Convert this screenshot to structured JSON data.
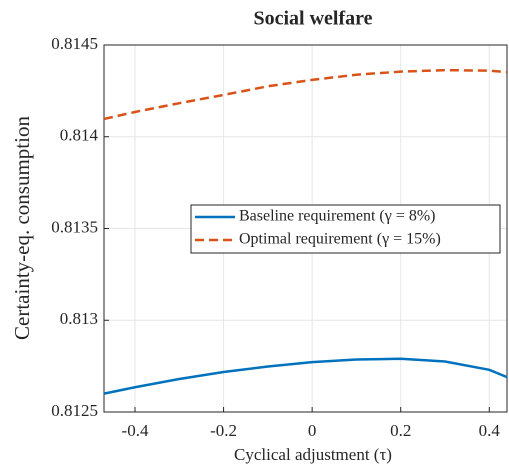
{
  "chart_data": {
    "type": "line",
    "title": "Social welfare",
    "x_label": "Cyclical adjustment (τ)",
    "y_label": "Certainty-eq. consumption",
    "x": [
      -0.47,
      -0.4,
      -0.3,
      -0.2,
      -0.1,
      0,
      0.1,
      0.2,
      0.3,
      0.4,
      0.44
    ],
    "series": [
      {
        "name": "Baseline requirement (γ = 8%)",
        "color": "#0072bd",
        "dash": "solid",
        "values": [
          0.8126,
          0.812635,
          0.81268,
          0.812718,
          0.812748,
          0.812772,
          0.812786,
          0.81279,
          0.812775,
          0.81273,
          0.81269
        ]
      },
      {
        "name": "Optimal requirement (γ = 15%)",
        "color": "#d95319",
        "dash": "dashed",
        "values": [
          0.814097,
          0.814135,
          0.814183,
          0.814228,
          0.814275,
          0.81431,
          0.814338,
          0.814355,
          0.814363,
          0.81436,
          0.814352
        ]
      }
    ],
    "xlim": [
      -0.47,
      0.44
    ],
    "xticks": [
      -0.4,
      -0.2,
      0,
      0.2,
      0.4
    ],
    "ylim": [
      0.8125,
      0.8145
    ],
    "yticks": [
      0.8125,
      0.813,
      0.8135,
      0.814,
      0.8145
    ],
    "grid": true,
    "legend": "right"
  }
}
